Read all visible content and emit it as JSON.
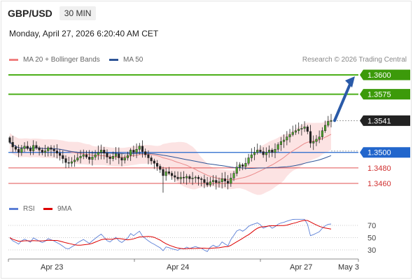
{
  "header": {
    "pair": "GBP/USD",
    "timeframe": "30 MIN",
    "datetime": "Monday, April 27, 2026 6:20:40 AM CET"
  },
  "legend": {
    "ma20_label": "MA 20 + Bollinger Bands",
    "ma20_color": "#f08080",
    "ma50_label": "MA 50",
    "ma50_color": "#2f5597",
    "copyright": "Research © 2026 Trading Central"
  },
  "rsi_legend": {
    "rsi_label": "RSI",
    "rsi_color": "#5b7fd6",
    "ma_label": "9MA",
    "ma_color": "#dd0000"
  },
  "chart_data": {
    "type": "candlestick",
    "instrument": "GBP/USD",
    "price_range": [
      1.343,
      1.3625
    ],
    "x_labels": [
      "Apr 23",
      "Apr 24",
      "Apr 27",
      "May 3"
    ],
    "levels": [
      {
        "value": "1.3600",
        "price": 1.36,
        "kind": "resistance",
        "color": "#4caf1a"
      },
      {
        "value": "1.3575",
        "price": 1.3575,
        "kind": "resistance",
        "color": "#4caf1a"
      },
      {
        "value": "1.3541",
        "price": 1.3541,
        "kind": "current",
        "color": "#333333"
      },
      {
        "value": "1.3500",
        "price": 1.35,
        "kind": "pivot",
        "color": "#2266cc"
      },
      {
        "value": "1.3480",
        "price": 1.348,
        "kind": "support",
        "color": "#e05050"
      },
      {
        "value": "1.3460",
        "price": 1.346,
        "kind": "support",
        "color": "#e05050"
      }
    ],
    "forecast_target": 1.36,
    "close_path": [
      1.3513,
      1.3507,
      1.3504,
      1.35,
      1.3505,
      1.3508,
      1.3505,
      1.3502,
      1.3509,
      1.3506,
      1.3503,
      1.35,
      1.3502,
      1.3506,
      1.3504,
      1.3502,
      1.3499,
      1.3496,
      1.3492,
      1.3487,
      1.3486,
      1.3488,
      1.349,
      1.3493,
      1.3495,
      1.3497,
      1.3494,
      1.3491,
      1.3494,
      1.3497,
      1.35,
      1.3503,
      1.3499,
      1.3494,
      1.3492,
      1.3495,
      1.3498,
      1.3493,
      1.349,
      1.3493,
      1.3496,
      1.3503,
      1.35,
      1.3504,
      1.3508,
      1.3501,
      1.3497,
      1.3493,
      1.3489,
      1.3486,
      1.3482,
      1.3478,
      1.347,
      1.3475,
      1.3473,
      1.347,
      1.3468,
      1.3466,
      1.3468,
      1.3467,
      1.3469,
      1.3466,
      1.3467,
      1.3468,
      1.3466,
      1.3465,
      1.3461,
      1.3458,
      1.3462,
      1.3464,
      1.3461,
      1.3462,
      1.3466,
      1.3463,
      1.346,
      1.3467,
      1.3473,
      1.3481,
      1.3484,
      1.3482,
      1.3486,
      1.3493,
      1.3497,
      1.35,
      1.3503,
      1.3501,
      1.3497,
      1.35,
      1.3503,
      1.35,
      1.3504,
      1.351,
      1.3514,
      1.3516,
      1.352,
      1.3523,
      1.3526,
      1.3528,
      1.353,
      1.3531,
      1.3533,
      1.3527,
      1.3512,
      1.3514,
      1.3517,
      1.352,
      1.3528,
      1.3535,
      1.354,
      1.3541
    ],
    "indicators": {
      "rsi": {
        "levels": [
          70,
          50,
          30
        ]
      }
    }
  }
}
